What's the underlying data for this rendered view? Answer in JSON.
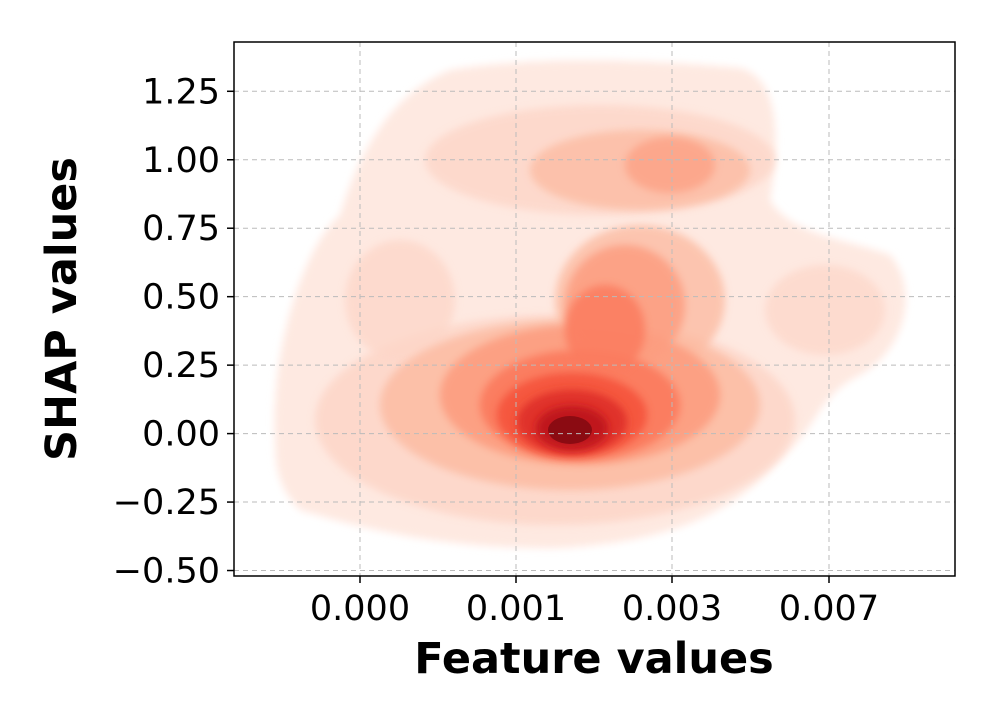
{
  "chart_data": {
    "type": "kde-contour",
    "xlabel": "Feature values",
    "ylabel": "SHAP values",
    "x_ticks": [
      "0.000",
      "0.001",
      "0.003",
      "0.007"
    ],
    "y_ticks": [
      "1.25",
      "1.00",
      "0.75",
      "0.50",
      "0.25",
      "0.00",
      "−0.25",
      "−0.50"
    ],
    "y_tick_values": [
      1.25,
      1.0,
      0.75,
      0.5,
      0.25,
      0.0,
      -0.25,
      -0.5
    ],
    "ylim": [
      -0.52,
      1.43
    ],
    "grid": true,
    "colormap": "Reds",
    "colors": {
      "levels": [
        "#fee9e1",
        "#fdd6c8",
        "#fcbca3",
        "#fc9d80",
        "#fb7c5f",
        "#f5553d",
        "#e0302a",
        "#c0161c",
        "#8b0b12"
      ]
    },
    "density_peaks": [
      {
        "x_label": "0.001",
        "x_pos": 1.35,
        "y": 0.02,
        "intensity": 1.0
      },
      {
        "x_label": "0.003",
        "x_pos": 2.0,
        "y": 1.0,
        "intensity": 0.35
      },
      {
        "x_label": "0.000",
        "x_pos": 0.25,
        "y": 0.52,
        "intensity": 0.15
      },
      {
        "x_label": "0.003",
        "x_pos": 1.85,
        "y": 0.45,
        "intensity": 0.55
      },
      {
        "x_label": "0.007",
        "x_pos": 3.0,
        "y": 0.5,
        "intensity": 0.12
      }
    ]
  }
}
